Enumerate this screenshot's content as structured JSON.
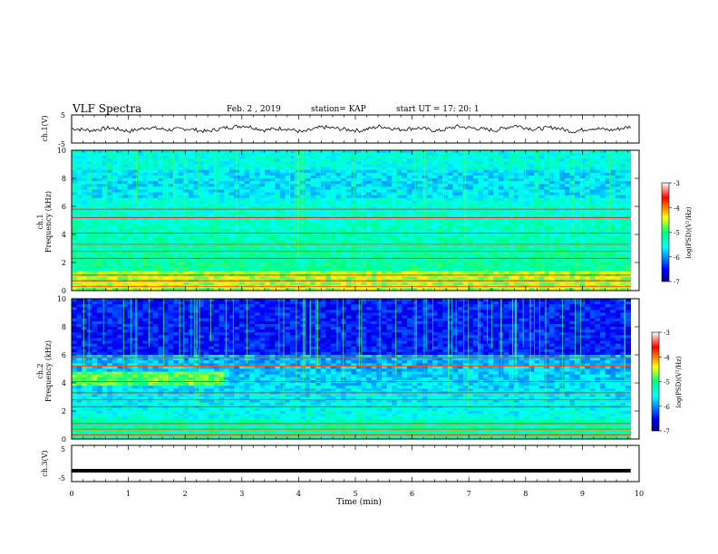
{
  "header": {
    "title": "VLF Spectra",
    "date": "Feb. 2 , 2019",
    "station": "station= KAP",
    "start": "start UT = 17: 20: 1"
  },
  "chart_data": [
    {
      "type": "line",
      "panel": "ch1-waveform",
      "ylabel": "ch.1(V)",
      "ylim": [
        -5,
        5
      ],
      "yticks": [
        "5",
        "-5"
      ],
      "xlim": [
        0,
        10
      ],
      "series": [
        {
          "values": [
            0.2,
            -0.5,
            0.4,
            -0.8,
            0.6,
            -0.3,
            0.1,
            -0.9,
            0.5,
            1.2,
            -0.4,
            0.3,
            -1.1,
            0.7,
            0.0,
            -0.6,
            1.0,
            -0.2,
            0.4,
            -0.7,
            0.9,
            0.2,
            -0.5,
            1.3,
            -0.1,
            0.6,
            -0.9,
            0.3,
            -0.4,
            0.8
          ]
        }
      ]
    },
    {
      "type": "heatmap",
      "panel": "ch1-spectrogram",
      "ylabel": "ch.1 Frequency (kHz)",
      "ylim": [
        0,
        10
      ],
      "yticks": [
        "0",
        "2",
        "4",
        "6",
        "8",
        "10"
      ],
      "xlim": [
        0,
        9.85
      ],
      "colorbar": {
        "label": "log(PSD)(V²/Hz)",
        "range": [
          -7,
          -3
        ],
        "ticks": [
          "-3",
          "-4",
          "-5",
          "-6",
          "-7"
        ]
      }
    },
    {
      "type": "heatmap",
      "panel": "ch2-spectrogram",
      "ylabel": "ch.2 Frequency (kHz)",
      "ylim": [
        0,
        10
      ],
      "yticks": [
        "0",
        "2",
        "4",
        "6",
        "8",
        "10"
      ],
      "xlim": [
        0,
        9.85
      ],
      "colorbar": {
        "label": "log(PSD)(V²/Hz)",
        "range": [
          -7,
          -3
        ],
        "ticks": [
          "-3",
          "-4",
          "-5",
          "-6",
          "-7"
        ]
      }
    },
    {
      "type": "line",
      "panel": "ch3-waveform",
      "ylabel": "ch.3(V)",
      "ylim": [
        -5,
        5
      ],
      "yticks": [
        "5",
        "-5"
      ],
      "xlim": [
        0,
        10
      ],
      "series": [
        {
          "values": [
            -2,
            -2,
            -2,
            -2,
            -2,
            -2,
            -2,
            -2,
            -2,
            -2
          ]
        }
      ]
    }
  ],
  "xaxis": {
    "label": "Time (min)",
    "ticks": [
      "0",
      "1",
      "2",
      "3",
      "4",
      "5",
      "6",
      "7",
      "8",
      "9",
      "10"
    ]
  },
  "colors": {
    "low": "#00007f",
    "mid": "#00ff7f",
    "high": "#ff0000",
    "top": "#ffffff"
  }
}
